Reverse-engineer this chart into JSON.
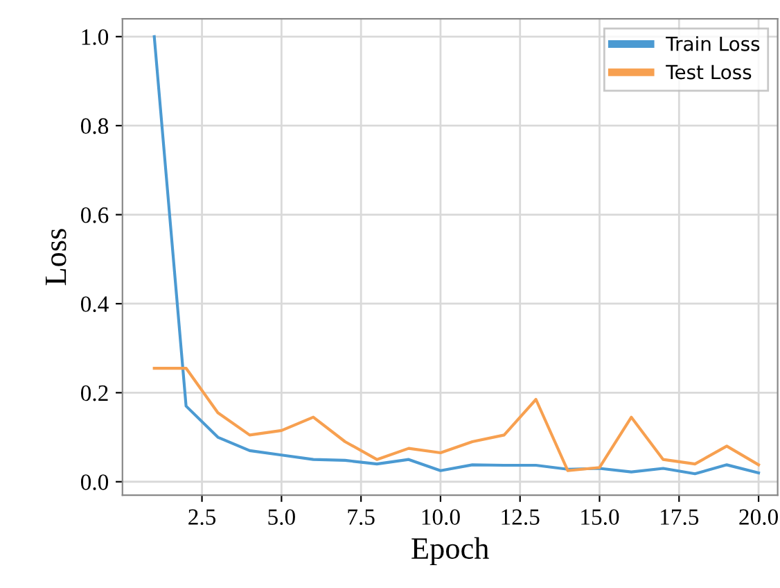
{
  "chart_data": {
    "type": "line",
    "xlabel": "Epoch",
    "ylabel": "Loss",
    "x": [
      1,
      2,
      3,
      4,
      5,
      6,
      7,
      8,
      9,
      10,
      11,
      12,
      13,
      14,
      15,
      16,
      17,
      18,
      19,
      20
    ],
    "series": [
      {
        "name": "Train Loss",
        "color": "#4b9ad2",
        "values": [
          1.0,
          0.17,
          0.1,
          0.07,
          0.06,
          0.05,
          0.048,
          0.04,
          0.05,
          0.025,
          0.038,
          0.037,
          0.037,
          0.028,
          0.03,
          0.022,
          0.03,
          0.018,
          0.038,
          0.02
        ]
      },
      {
        "name": "Test Loss",
        "color": "#f7a050",
        "values": [
          0.255,
          0.255,
          0.155,
          0.105,
          0.115,
          0.145,
          0.09,
          0.05,
          0.075,
          0.065,
          0.09,
          0.105,
          0.185,
          0.025,
          0.032,
          0.145,
          0.05,
          0.04,
          0.08,
          0.038
        ]
      }
    ],
    "xlim": [
      0,
      20.6
    ],
    "ylim": [
      -0.03,
      1.04
    ],
    "xticks": [
      {
        "value": 2.5,
        "label": "2.5"
      },
      {
        "value": 5,
        "label": "5.0"
      },
      {
        "value": 7.5,
        "label": "7.5"
      },
      {
        "value": 10,
        "label": "10.0"
      },
      {
        "value": 12.5,
        "label": "12.5"
      },
      {
        "value": 15,
        "label": "15.0"
      },
      {
        "value": 17.5,
        "label": "17.5"
      },
      {
        "value": 20,
        "label": "20.0"
      }
    ],
    "yticks": [
      {
        "value": 0,
        "label": "0.0"
      },
      {
        "value": 0.2,
        "label": "0.2"
      },
      {
        "value": 0.4,
        "label": "0.4"
      },
      {
        "value": 0.6,
        "label": "0.6"
      },
      {
        "value": 0.8,
        "label": "0.8"
      },
      {
        "value": 1.0,
        "label": "1.0"
      }
    ],
    "grid": true,
    "legend": "top right"
  }
}
